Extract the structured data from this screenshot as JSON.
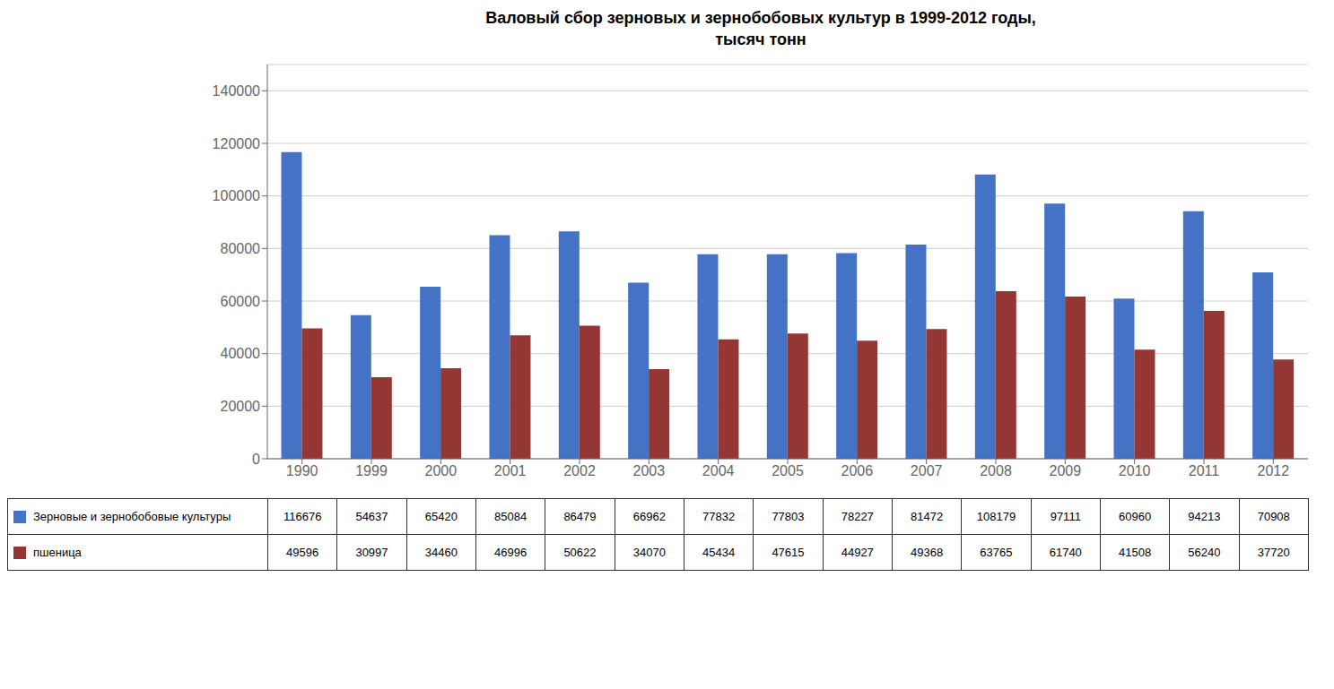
{
  "chart_data": {
    "type": "bar",
    "title": "Валовый сбор зерновых и зернобобовых культур в 1999-2012 годы,\nтысяч тонн",
    "categories": [
      "1990",
      "1999",
      "2000",
      "2001",
      "2002",
      "2003",
      "2004",
      "2005",
      "2006",
      "2007",
      "2008",
      "2009",
      "2010",
      "2011",
      "2012"
    ],
    "series": [
      {
        "name": "Зерновые и зернобобовые культуры",
        "color": "#4472C4",
        "values": [
          116676,
          54637,
          65420,
          85084,
          86479,
          66962,
          77832,
          77803,
          78227,
          81472,
          108179,
          97111,
          60960,
          94213,
          70908
        ]
      },
      {
        "name": "пшеница",
        "color": "#943634",
        "values": [
          49596,
          30997,
          34460,
          46996,
          50622,
          34070,
          45434,
          47615,
          44927,
          49368,
          63765,
          61740,
          41508,
          56240,
          37720
        ]
      }
    ],
    "ylim": [
      0,
      150000
    ],
    "yticks": [
      0,
      20000,
      40000,
      60000,
      80000,
      100000,
      120000,
      140000
    ],
    "grid": true,
    "legend": "bottom"
  }
}
